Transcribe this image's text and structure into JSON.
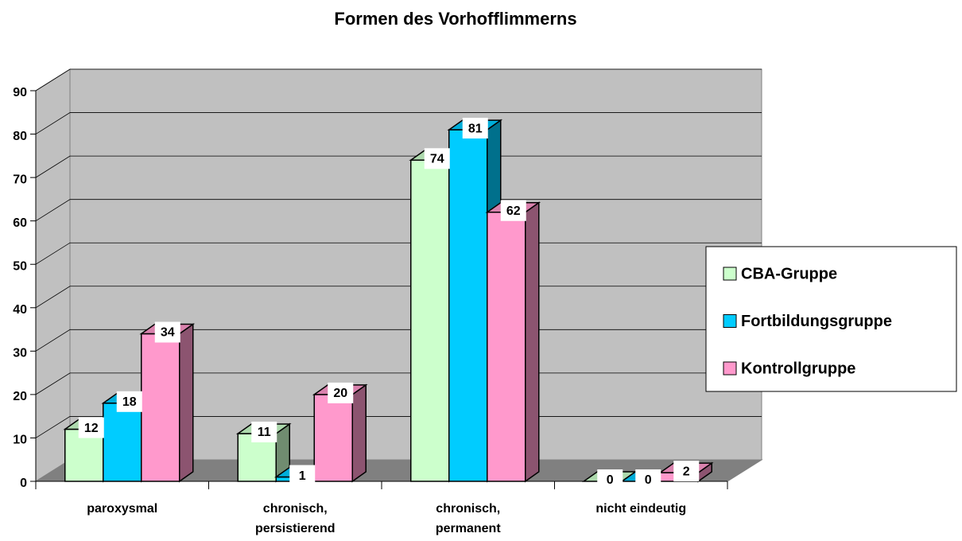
{
  "chart_data": {
    "type": "bar3d",
    "title": "Formen des Vorhofflimmerns",
    "categories": [
      "paroxysmal",
      "chronisch, persistierend",
      "chronisch, permanent",
      "nicht eindeutig"
    ],
    "series": [
      {
        "name": "CBA-Gruppe",
        "color": "#ccffcc",
        "values": [
          12,
          11,
          74,
          0
        ]
      },
      {
        "name": "Fortbildungsgruppe",
        "color": "#00ccff",
        "values": [
          18,
          1,
          81,
          0
        ]
      },
      {
        "name": "Kontrollgruppe",
        "color": "#ff99cc",
        "values": [
          34,
          20,
          62,
          2
        ]
      }
    ],
    "ylim": [
      0,
      90
    ],
    "yticks": [
      0,
      10,
      20,
      30,
      40,
      50,
      60,
      70,
      80,
      90
    ],
    "grid": true,
    "legend": "right"
  }
}
